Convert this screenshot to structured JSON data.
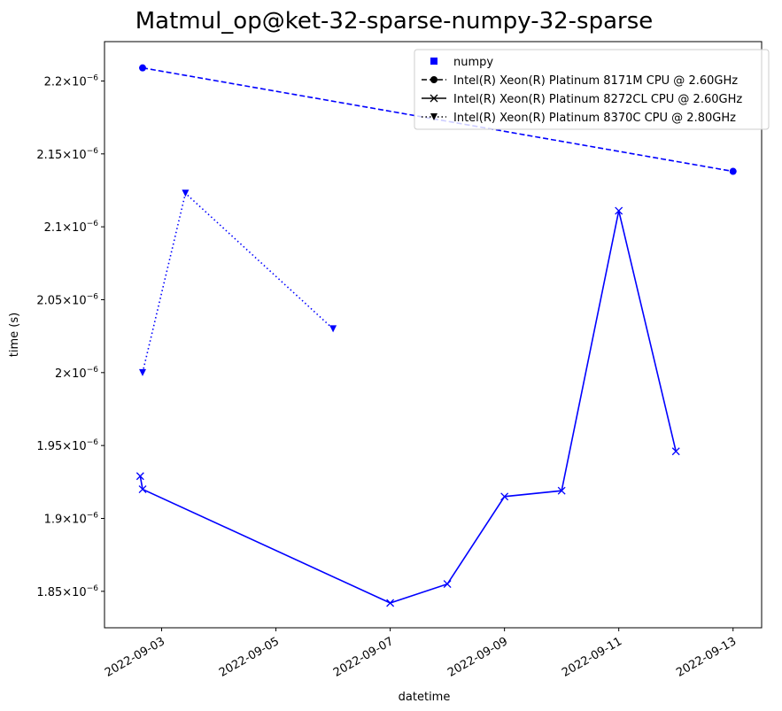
{
  "chart_data": {
    "type": "line",
    "title": "Matmul_op@ket-32-sparse-numpy-32-sparse",
    "xlabel": "datetime",
    "ylabel": "time (s)",
    "xlim": [
      "2022-09-02T00:00:00",
      "2022-09-13T12:00:00"
    ],
    "ylim": [
      1.825e-06,
      2.227e-06
    ],
    "x_ticks": [
      "2022-09-03",
      "2022-09-05",
      "2022-09-07",
      "2022-09-09",
      "2022-09-11",
      "2022-09-13"
    ],
    "y_ticks": [
      {
        "value": 1.85e-06,
        "mantissa": "1.85"
      },
      {
        "value": 1.9e-06,
        "mantissa": "1.9"
      },
      {
        "value": 1.95e-06,
        "mantissa": "1.95"
      },
      {
        "value": 2e-06,
        "mantissa": "2"
      },
      {
        "value": 2.05e-06,
        "mantissa": "2.05"
      },
      {
        "value": 2.1e-06,
        "mantissa": "2.1"
      },
      {
        "value": 2.15e-06,
        "mantissa": "2.15"
      },
      {
        "value": 2.2e-06,
        "mantissa": "2.2"
      }
    ],
    "tick_base": "10",
    "tick_exponent": "−6",
    "legend_position": "top-right",
    "color": "#0000ff",
    "legend": [
      {
        "label": "numpy",
        "marker": "square",
        "linestyle": "none"
      },
      {
        "label": "Intel(R) Xeon(R) Platinum 8171M CPU @ 2.60GHz",
        "marker": "circle",
        "linestyle": "dashed"
      },
      {
        "label": "Intel(R) Xeon(R) Platinum 8272CL CPU @ 2.60GHz",
        "marker": "x",
        "linestyle": "solid"
      },
      {
        "label": "Intel(R) Xeon(R) Platinum 8370C CPU @ 2.80GHz",
        "marker": "triangle-down",
        "linestyle": "dotted"
      }
    ],
    "series": [
      {
        "name": "Intel(R) Xeon(R) Platinum 8171M CPU @ 2.60GHz",
        "marker": "circle",
        "linestyle": "dashed",
        "points": [
          {
            "x": "2022-09-02T16:00:00",
            "y": 2.209e-06
          },
          {
            "x": "2022-09-13T00:00:00",
            "y": 2.138e-06
          }
        ]
      },
      {
        "name": "Intel(R) Xeon(R) Platinum 8272CL CPU @ 2.60GHz",
        "marker": "x",
        "linestyle": "solid",
        "points": [
          {
            "x": "2022-09-02T15:00:00",
            "y": 1.929e-06
          },
          {
            "x": "2022-09-02T16:00:00",
            "y": 1.92e-06
          },
          {
            "x": "2022-09-07T00:00:00",
            "y": 1.842e-06
          },
          {
            "x": "2022-09-08T00:00:00",
            "y": 1.855e-06
          },
          {
            "x": "2022-09-09T00:00:00",
            "y": 1.915e-06
          },
          {
            "x": "2022-09-10T00:00:00",
            "y": 1.919e-06
          },
          {
            "x": "2022-09-11T00:00:00",
            "y": 2.111e-06
          },
          {
            "x": "2022-09-12T00:00:00",
            "y": 1.946e-06
          }
        ]
      },
      {
        "name": "Intel(R) Xeon(R) Platinum 8370C CPU @ 2.80GHz",
        "marker": "triangle-down",
        "linestyle": "dotted",
        "points": [
          {
            "x": "2022-09-02T16:00:00",
            "y": 2e-06
          },
          {
            "x": "2022-09-03T10:00:00",
            "y": 2.123e-06
          },
          {
            "x": "2022-09-06T00:00:00",
            "y": 2.03e-06
          }
        ]
      }
    ]
  }
}
